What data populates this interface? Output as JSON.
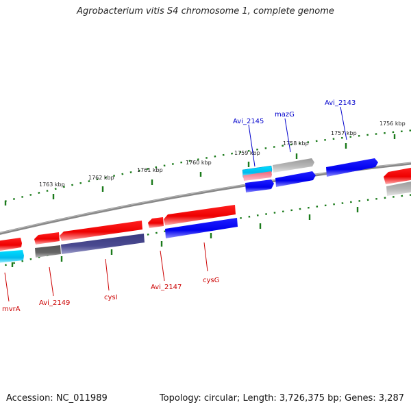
{
  "title": "Agrobacterium vitis S4 chromosome 1, complete genome",
  "accession_text": "Accession: NC_011989",
  "summary_text": "Topology: circular; Length: 3,726,375 bp; Genes: 3,287",
  "scale_labels": [
    "1763 kbp",
    "1762 kbp",
    "1761 kbp",
    "1760 kbp",
    "1759 kbp",
    "1758 kbp",
    "1757 kbp",
    "1756 kbp"
  ],
  "gene_labels": {
    "top": [
      "Avi_2145",
      "mazG",
      "Avi_2143"
    ],
    "bottom": [
      "mvrA",
      "Avi_2149",
      "cysI",
      "Avi_2147",
      "cysG"
    ]
  },
  "colors": {
    "plus_strand_label": "#0000cc",
    "minus_strand_label": "#cc0000",
    "red_gene": "#ee0000",
    "blue_gene": "#0000ee",
    "cyan_gene": "#00bbee",
    "gray_gene": "#aaaaaa",
    "dark_gene": "#444488",
    "backbone": "#888888",
    "tick": "#1a7a1a"
  }
}
